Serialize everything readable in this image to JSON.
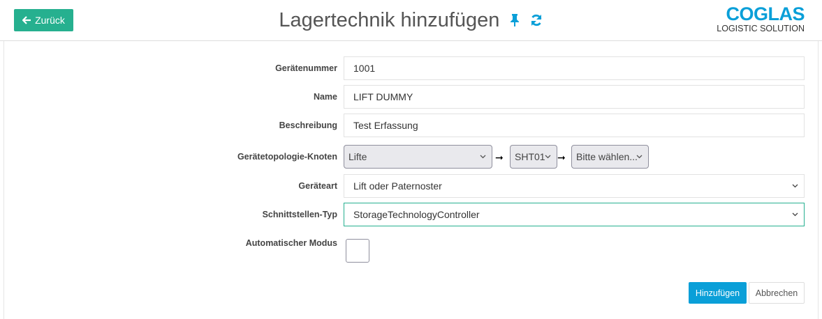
{
  "header": {
    "back_label": "Zurück",
    "title": "Lagertechnik hinzufügen",
    "icons": [
      "pin-icon",
      "refresh-icon"
    ],
    "logo": {
      "brand": "COGLAS",
      "tagline": "LOGISTIC SOLUTION"
    }
  },
  "form": {
    "geraetenummer": {
      "label": "Gerätenummer",
      "value": "1001"
    },
    "name": {
      "label": "Name",
      "value": "LIFT DUMMY"
    },
    "beschreibung": {
      "label": "Beschreibung",
      "value": "Test Erfassung"
    },
    "topologie": {
      "label": "Gerätetopologie-Knoten",
      "level1": "Lifte",
      "level2": "SHT01",
      "level3": "Bitte wählen...",
      "separator": "➞"
    },
    "geraeteart": {
      "label": "Geräteart",
      "value": "Lift oder Paternoster"
    },
    "schnittstelle": {
      "label": "Schnittstellen-Typ",
      "value": "StorageTechnologyController"
    },
    "automatik": {
      "label": "Automatischer Modus",
      "checked": false
    }
  },
  "actions": {
    "submit": "Hinzufügen",
    "cancel": "Abbrechen"
  },
  "colors": {
    "primary_teal": "#26b08f",
    "primary_blue": "#0a9fd8"
  }
}
